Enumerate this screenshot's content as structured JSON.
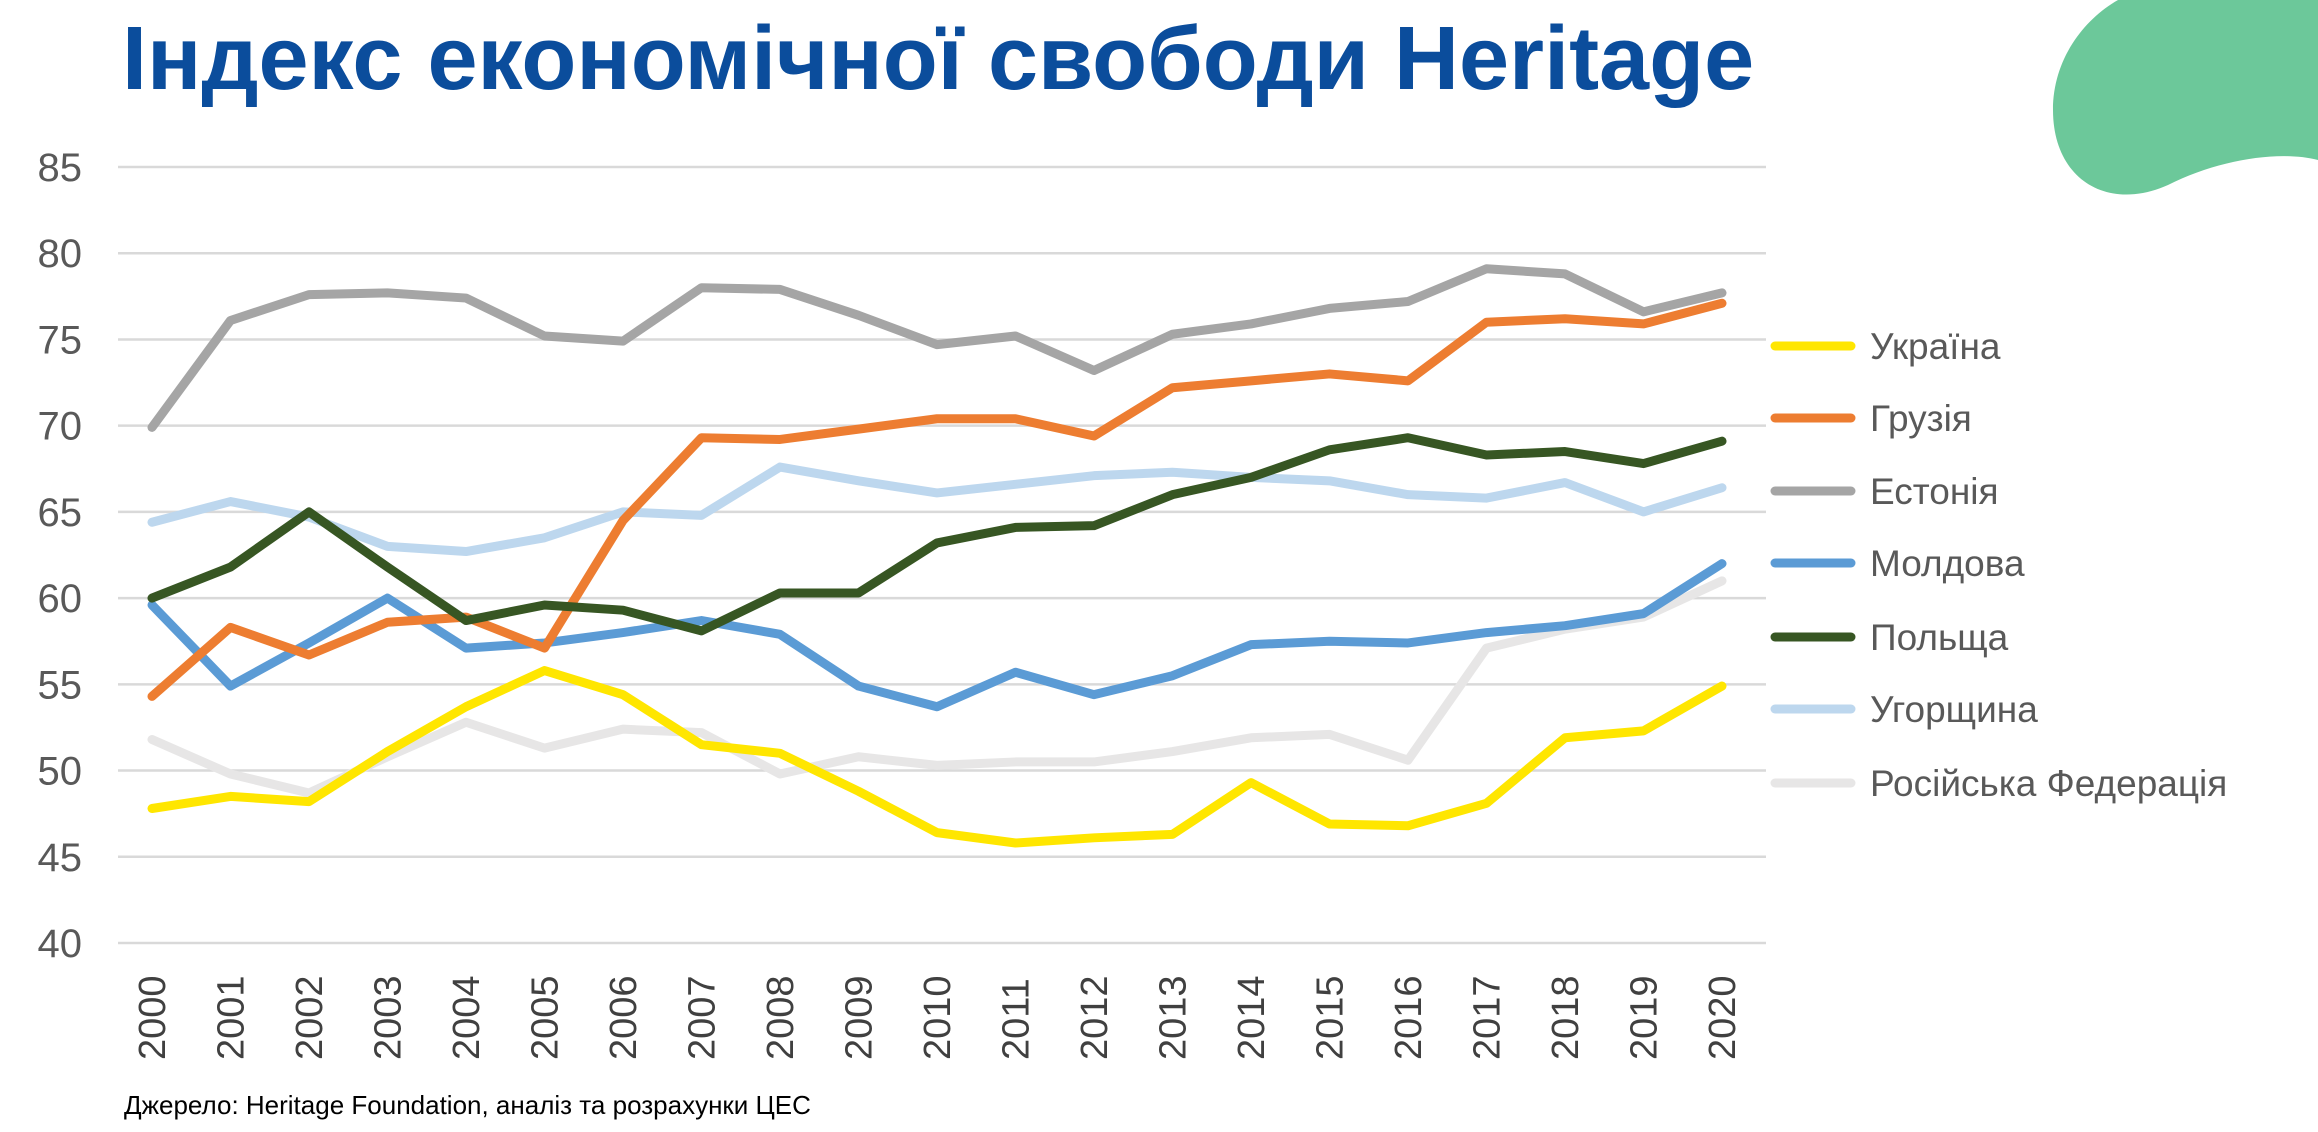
{
  "title": "Індекс економічної свободи Heritage",
  "source": "Джерело: Heritage Foundation, аналіз та розрахунки ЦЕС",
  "colors": {
    "title": "#0b4d9c",
    "blob": "#6cc89a",
    "grid": "#d9d9d9",
    "axis_text": "#595959"
  },
  "chart_data": {
    "type": "line",
    "title": "Індекс економічної свободи Heritage",
    "xlabel": "",
    "ylabel": "",
    "ylim": [
      40,
      85
    ],
    "yticks": [
      "40",
      "45",
      "50",
      "55",
      "60",
      "65",
      "70",
      "75",
      "80",
      "85"
    ],
    "grid": true,
    "legend_position": "right",
    "x": [
      "2000",
      "2001",
      "2002",
      "2003",
      "2004",
      "2005",
      "2006",
      "2007",
      "2008",
      "2009",
      "2010",
      "2011",
      "2012",
      "2013",
      "2014",
      "2015",
      "2016",
      "2017",
      "2018",
      "2019",
      "2020"
    ],
    "series": [
      {
        "name": "Україна",
        "color": "#ffe600",
        "values": [
          47.8,
          48.5,
          48.2,
          51.1,
          53.7,
          55.8,
          54.4,
          51.5,
          51.0,
          48.8,
          46.4,
          45.8,
          46.1,
          46.3,
          49.3,
          46.9,
          46.8,
          48.1,
          51.9,
          52.3,
          54.9
        ]
      },
      {
        "name": "Грузія",
        "color": "#ed7d31",
        "values": [
          54.3,
          58.3,
          56.7,
          58.6,
          58.9,
          57.1,
          64.5,
          69.3,
          69.2,
          69.8,
          70.4,
          70.4,
          69.4,
          72.2,
          72.6,
          73.0,
          72.6,
          76.0,
          76.2,
          75.9,
          77.1
        ]
      },
      {
        "name": "Естонія",
        "color": "#a5a5a5",
        "values": [
          69.9,
          76.1,
          77.6,
          77.7,
          77.4,
          75.2,
          74.9,
          78.0,
          77.9,
          76.4,
          74.7,
          75.2,
          73.2,
          75.3,
          75.9,
          76.8,
          77.2,
          79.1,
          78.8,
          76.6,
          77.7
        ]
      },
      {
        "name": "Молдова",
        "color": "#5b9bd5",
        "values": [
          59.6,
          54.9,
          57.4,
          60.0,
          57.1,
          57.4,
          58.0,
          58.7,
          57.9,
          54.9,
          53.7,
          55.7,
          54.4,
          55.5,
          57.3,
          57.5,
          57.4,
          58.0,
          58.4,
          59.1,
          62.0
        ]
      },
      {
        "name": "Польща",
        "color": "#375623",
        "values": [
          60.0,
          61.8,
          65.0,
          61.8,
          58.7,
          59.6,
          59.3,
          58.1,
          60.3,
          60.3,
          63.2,
          64.1,
          64.2,
          66.0,
          67.0,
          68.6,
          69.3,
          68.3,
          68.5,
          67.8,
          69.1
        ]
      },
      {
        "name": "Угорщина",
        "color": "#bdd7ee",
        "values": [
          64.4,
          65.6,
          64.7,
          63.0,
          62.7,
          63.5,
          65.0,
          64.8,
          67.6,
          66.8,
          66.1,
          66.6,
          67.1,
          67.3,
          67.0,
          66.8,
          66.0,
          65.8,
          66.7,
          65.0,
          66.4
        ]
      },
      {
        "name": "Російська Федерація",
        "color": "#e7e6e6",
        "values": [
          51.8,
          49.8,
          48.7,
          50.8,
          52.8,
          51.3,
          52.4,
          52.2,
          49.8,
          50.8,
          50.3,
          50.5,
          50.5,
          51.1,
          51.9,
          52.1,
          50.6,
          57.1,
          58.2,
          58.9,
          61.0
        ]
      }
    ]
  }
}
